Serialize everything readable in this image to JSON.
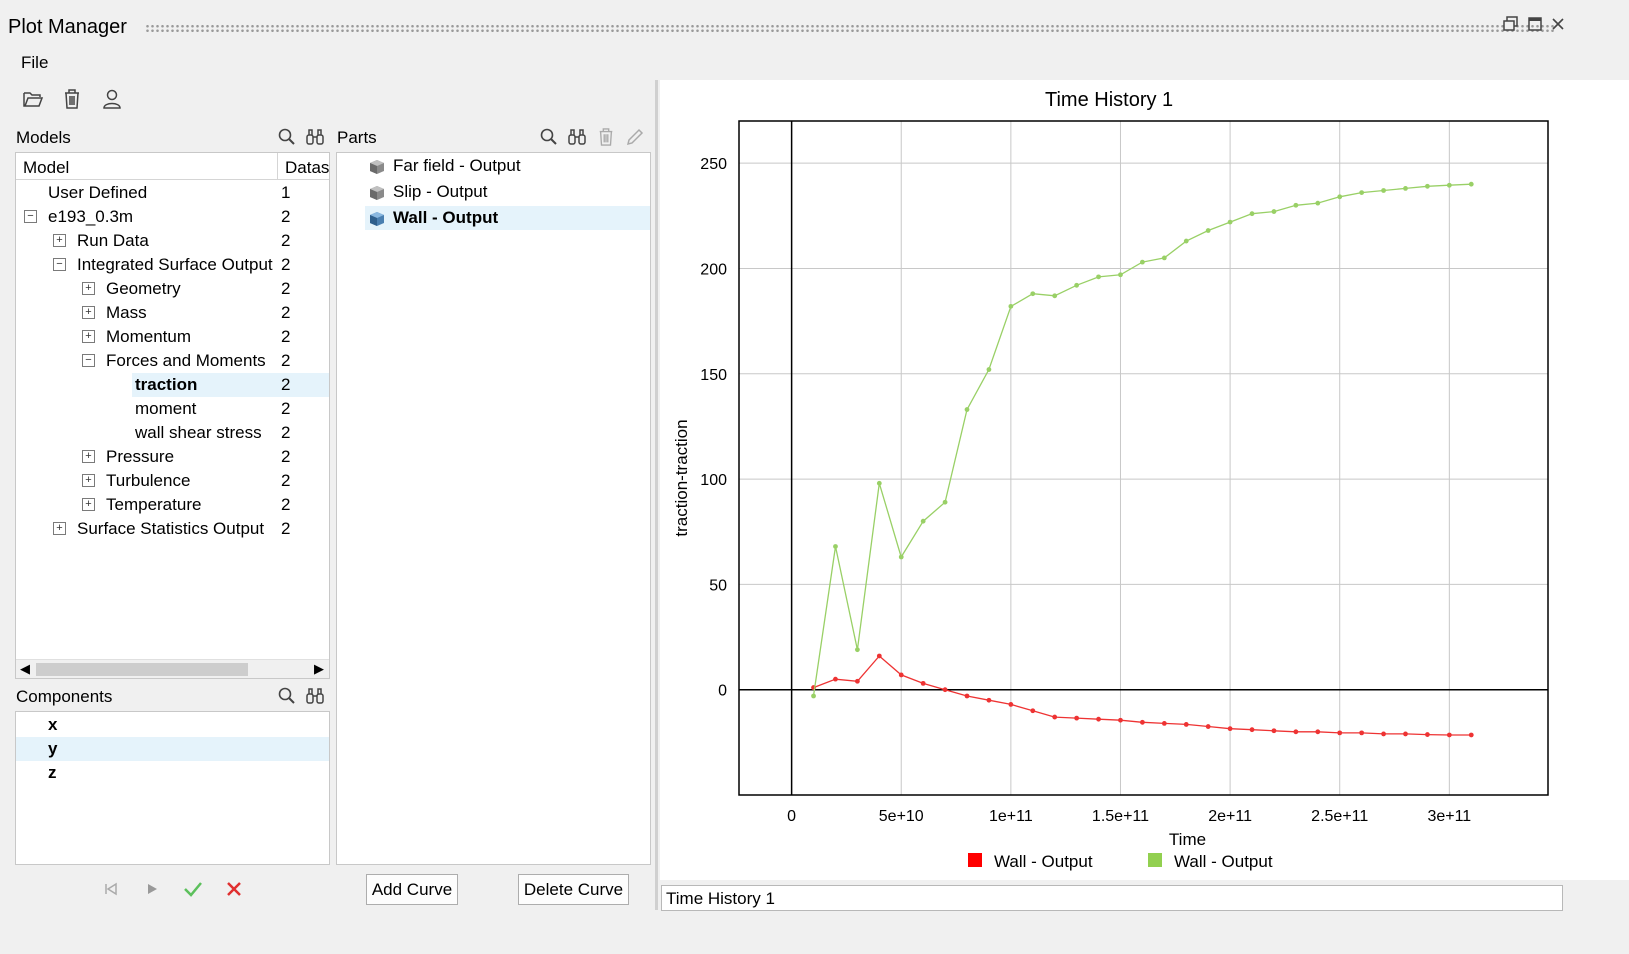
{
  "window": {
    "title": "Plot Manager",
    "menu_file": "File"
  },
  "models": {
    "label": "Models",
    "col_model": "Model",
    "col_datas": "Datas",
    "rows": [
      {
        "label": "User Defined",
        "value": "1"
      },
      {
        "label": "e193_0.3m",
        "value": "2",
        "expander": "−"
      },
      {
        "label": "Run Data",
        "value": "2",
        "expander": "+"
      },
      {
        "label": "Integrated Surface Output",
        "value": "2",
        "expander": "−"
      },
      {
        "label": "Geometry",
        "value": "2",
        "expander": "+"
      },
      {
        "label": "Mass",
        "value": "2",
        "expander": "+"
      },
      {
        "label": "Momentum",
        "value": "2",
        "expander": "+"
      },
      {
        "label": "Forces and Moments",
        "value": "2",
        "expander": "−"
      },
      {
        "label": "traction",
        "value": "2",
        "selected": true
      },
      {
        "label": "moment",
        "value": "2"
      },
      {
        "label": "wall shear stress",
        "value": "2"
      },
      {
        "label": "Pressure",
        "value": "2",
        "expander": "+"
      },
      {
        "label": "Turbulence",
        "value": "2",
        "expander": "+"
      },
      {
        "label": "Temperature",
        "value": "2",
        "expander": "+"
      },
      {
        "label": "Surface Statistics Output",
        "value": "2",
        "expander": "+"
      }
    ]
  },
  "parts": {
    "label": "Parts",
    "items": [
      {
        "label": "Far field - Output"
      },
      {
        "label": "Slip - Output"
      },
      {
        "label": "Wall - Output",
        "selected": true
      }
    ],
    "add_curve": "Add Curve",
    "delete_curve": "Delete Curve"
  },
  "components": {
    "label": "Components",
    "items": [
      "x",
      "y",
      "z"
    ],
    "selected": "y"
  },
  "chart_name_field": "Time History 1",
  "colors": {
    "red_series": "#ee3333",
    "green_series": "#99d066",
    "legend_red": "#ff0000",
    "legend_green": "#92d050",
    "selection": "#e5f3fb",
    "cancel_icon": "#e03030",
    "accept_icon": "#5cc05c"
  },
  "chart_data": {
    "type": "line",
    "title": "Time History 1",
    "xlabel": "Time",
    "ylabel": "traction-traction",
    "xlim": [
      -24000000000.0,
      345000000000.0
    ],
    "ylim": [
      -50,
      270
    ],
    "x_ticks": [
      0,
      50000000000.0,
      100000000000.0,
      150000000000.0,
      200000000000.0,
      250000000000.0,
      300000000000.0
    ],
    "x_tick_labels": [
      "0",
      "5e+10",
      "1e+11",
      "1.5e+11",
      "2e+11",
      "2.5e+11",
      "3e+11"
    ],
    "y_ticks": [
      0,
      50,
      100,
      150,
      200,
      250
    ],
    "y_tick_labels": [
      "0",
      "50",
      "100",
      "150",
      "200",
      "250"
    ],
    "grid": true,
    "legend_position": "bottom",
    "x": [
      10000000000.0,
      20000000000.0,
      30000000000.0,
      40000000000.0,
      50000000000.0,
      60000000000.0,
      70000000000.0,
      80000000000.0,
      90000000000.0,
      100000000000.0,
      110000000000.0,
      120000000000.0,
      130000000000.0,
      140000000000.0,
      150000000000.0,
      160000000000.0,
      170000000000.0,
      180000000000.0,
      190000000000.0,
      200000000000.0,
      210000000000.0,
      220000000000.0,
      230000000000.0,
      240000000000.0,
      250000000000.0,
      260000000000.0,
      270000000000.0,
      280000000000.0,
      290000000000.0,
      300000000000.0,
      310000000000.0
    ],
    "series": [
      {
        "name": "Wall - Output",
        "color": "#ee3333",
        "values": [
          1,
          5,
          4,
          16,
          7,
          3,
          0,
          -3,
          -5,
          -7,
          -10,
          -13,
          -13.5,
          -14,
          -14.5,
          -15.5,
          -16,
          -16.5,
          -17.5,
          -18.5,
          -19,
          -19.5,
          -20,
          -20,
          -20.5,
          -20.5,
          -21,
          -21,
          -21.3,
          -21.5,
          -21.5
        ]
      },
      {
        "name": "Wall - Output",
        "color": "#99d066",
        "values": [
          -3,
          68,
          19,
          98,
          63,
          80,
          89,
          133,
          152,
          182,
          188,
          187,
          192,
          196,
          197,
          203,
          205,
          213,
          218,
          222,
          226,
          227,
          230,
          231,
          234,
          236,
          237,
          238,
          239,
          239.5,
          240
        ]
      }
    ]
  }
}
